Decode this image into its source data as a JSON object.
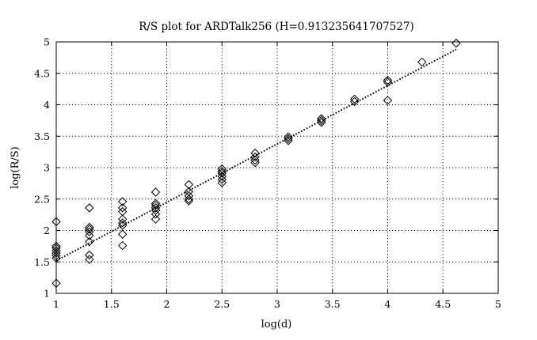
{
  "chart_data": {
    "type": "scatter",
    "title": "R/S plot for ARDTalk256 (H=0.913235641707527)",
    "xlabel": "log(d)",
    "ylabel": "log(R/S)",
    "xlim": [
      1,
      5
    ],
    "ylim": [
      1,
      5
    ],
    "xticks": [
      "1",
      "1.5",
      "2",
      "2.5",
      "3",
      "3.5",
      "4",
      "4.5",
      "5"
    ],
    "yticks": [
      "1",
      "1.5",
      "2",
      "2.5",
      "3",
      "3.5",
      "4",
      "4.5",
      "5"
    ],
    "grid": true,
    "marker": "diamond",
    "series": [
      {
        "points": [
          [
            1.0,
            2.14
          ],
          [
            1.0,
            1.75
          ],
          [
            1.0,
            1.72
          ],
          [
            1.0,
            1.68
          ],
          [
            1.0,
            1.64
          ],
          [
            1.0,
            1.6
          ],
          [
            1.0,
            1.56
          ],
          [
            1.0,
            1.16
          ],
          [
            1.3,
            2.36
          ],
          [
            1.3,
            2.05
          ],
          [
            1.3,
            2.02
          ],
          [
            1.3,
            1.98
          ],
          [
            1.3,
            1.92
          ],
          [
            1.3,
            1.82
          ],
          [
            1.3,
            1.61
          ],
          [
            1.3,
            1.54
          ],
          [
            1.6,
            2.46
          ],
          [
            1.6,
            2.36
          ],
          [
            1.6,
            2.3
          ],
          [
            1.6,
            2.18
          ],
          [
            1.6,
            2.12
          ],
          [
            1.6,
            2.08
          ],
          [
            1.6,
            1.94
          ],
          [
            1.6,
            1.76
          ],
          [
            1.9,
            2.61
          ],
          [
            1.9,
            2.43
          ],
          [
            1.9,
            2.4
          ],
          [
            1.9,
            2.36
          ],
          [
            1.9,
            2.32
          ],
          [
            1.9,
            2.26
          ],
          [
            1.9,
            2.18
          ],
          [
            2.2,
            2.73
          ],
          [
            2.2,
            2.62
          ],
          [
            2.2,
            2.55
          ],
          [
            2.2,
            2.5
          ],
          [
            2.2,
            2.47
          ],
          [
            2.5,
            2.98
          ],
          [
            2.5,
            2.94
          ],
          [
            2.5,
            2.91
          ],
          [
            2.5,
            2.86
          ],
          [
            2.5,
            2.81
          ],
          [
            2.5,
            2.76
          ],
          [
            2.8,
            3.23
          ],
          [
            2.8,
            3.17
          ],
          [
            2.8,
            3.12
          ],
          [
            2.8,
            3.08
          ],
          [
            3.1,
            3.49
          ],
          [
            3.1,
            3.46
          ],
          [
            3.1,
            3.43
          ],
          [
            3.4,
            3.78
          ],
          [
            3.4,
            3.75
          ],
          [
            3.4,
            3.72
          ],
          [
            3.7,
            4.09
          ],
          [
            3.7,
            4.05
          ],
          [
            4.0,
            4.39
          ],
          [
            4.0,
            4.36
          ],
          [
            4.0,
            4.07
          ],
          [
            4.31,
            4.68
          ],
          [
            4.62,
            4.98
          ]
        ]
      }
    ],
    "fit_line": {
      "x": [
        1.0,
        4.62
      ],
      "y": [
        1.52,
        4.88
      ]
    }
  }
}
